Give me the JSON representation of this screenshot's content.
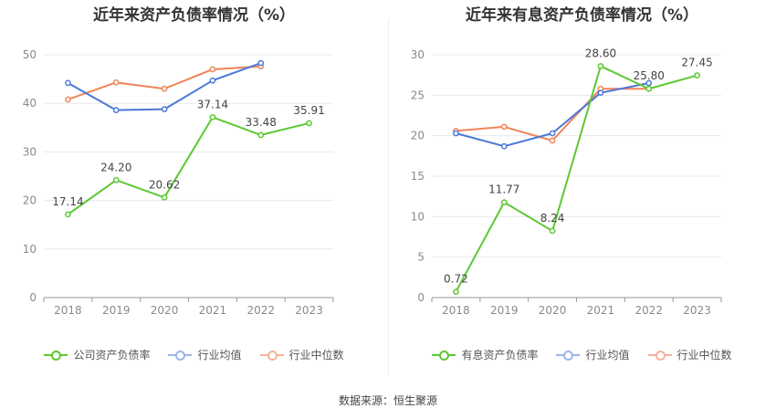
{
  "colors": {
    "company": "#5cc832",
    "avg": "#4a78d8",
    "median": "#f0845a",
    "axis": "#8a8a8a",
    "grid": "#e8e8e8",
    "label": "#444444"
  },
  "chart_data": [
    {
      "type": "line",
      "title": "近年来资产负债率情况（%）",
      "categories": [
        "2018",
        "2019",
        "2020",
        "2021",
        "2022",
        "2023"
      ],
      "ylim": [
        0,
        50
      ],
      "yticks": [
        0,
        10,
        20,
        30,
        40,
        50
      ],
      "series": [
        {
          "name": "公司资产负债率",
          "key": "company",
          "values": [
            17.14,
            24.2,
            20.62,
            37.14,
            33.48,
            35.91
          ],
          "labels": [
            "17.14",
            "24.20",
            "20.62",
            "37.14",
            "33.48",
            "35.91"
          ]
        },
        {
          "name": "行业均值",
          "key": "avg",
          "values": [
            44.2,
            38.6,
            38.8,
            44.7,
            48.3,
            null
          ]
        },
        {
          "name": "行业中位数",
          "key": "median",
          "values": [
            40.8,
            44.3,
            43.0,
            47.0,
            47.6,
            null
          ]
        }
      ]
    },
    {
      "type": "line",
      "title": "近年来有息资产负债率情况（%）",
      "categories": [
        "2018",
        "2019",
        "2020",
        "2021",
        "2022",
        "2023"
      ],
      "ylim": [
        0,
        30
      ],
      "yticks": [
        0,
        5,
        10,
        15,
        20,
        25,
        30
      ],
      "series": [
        {
          "name": "有息资产负债率",
          "key": "company",
          "values": [
            0.72,
            11.77,
            8.24,
            28.6,
            25.8,
            27.45
          ],
          "labels": [
            "0.72",
            "11.77",
            "8.24",
            "28.60",
            "25.80",
            "27.45"
          ]
        },
        {
          "name": "行业均值",
          "key": "avg",
          "values": [
            20.3,
            18.7,
            20.3,
            25.3,
            26.5,
            null
          ]
        },
        {
          "name": "行业中位数",
          "key": "median",
          "values": [
            20.6,
            21.1,
            19.4,
            25.8,
            25.8,
            null
          ]
        }
      ]
    }
  ],
  "source": "数据来源：恒生聚源"
}
